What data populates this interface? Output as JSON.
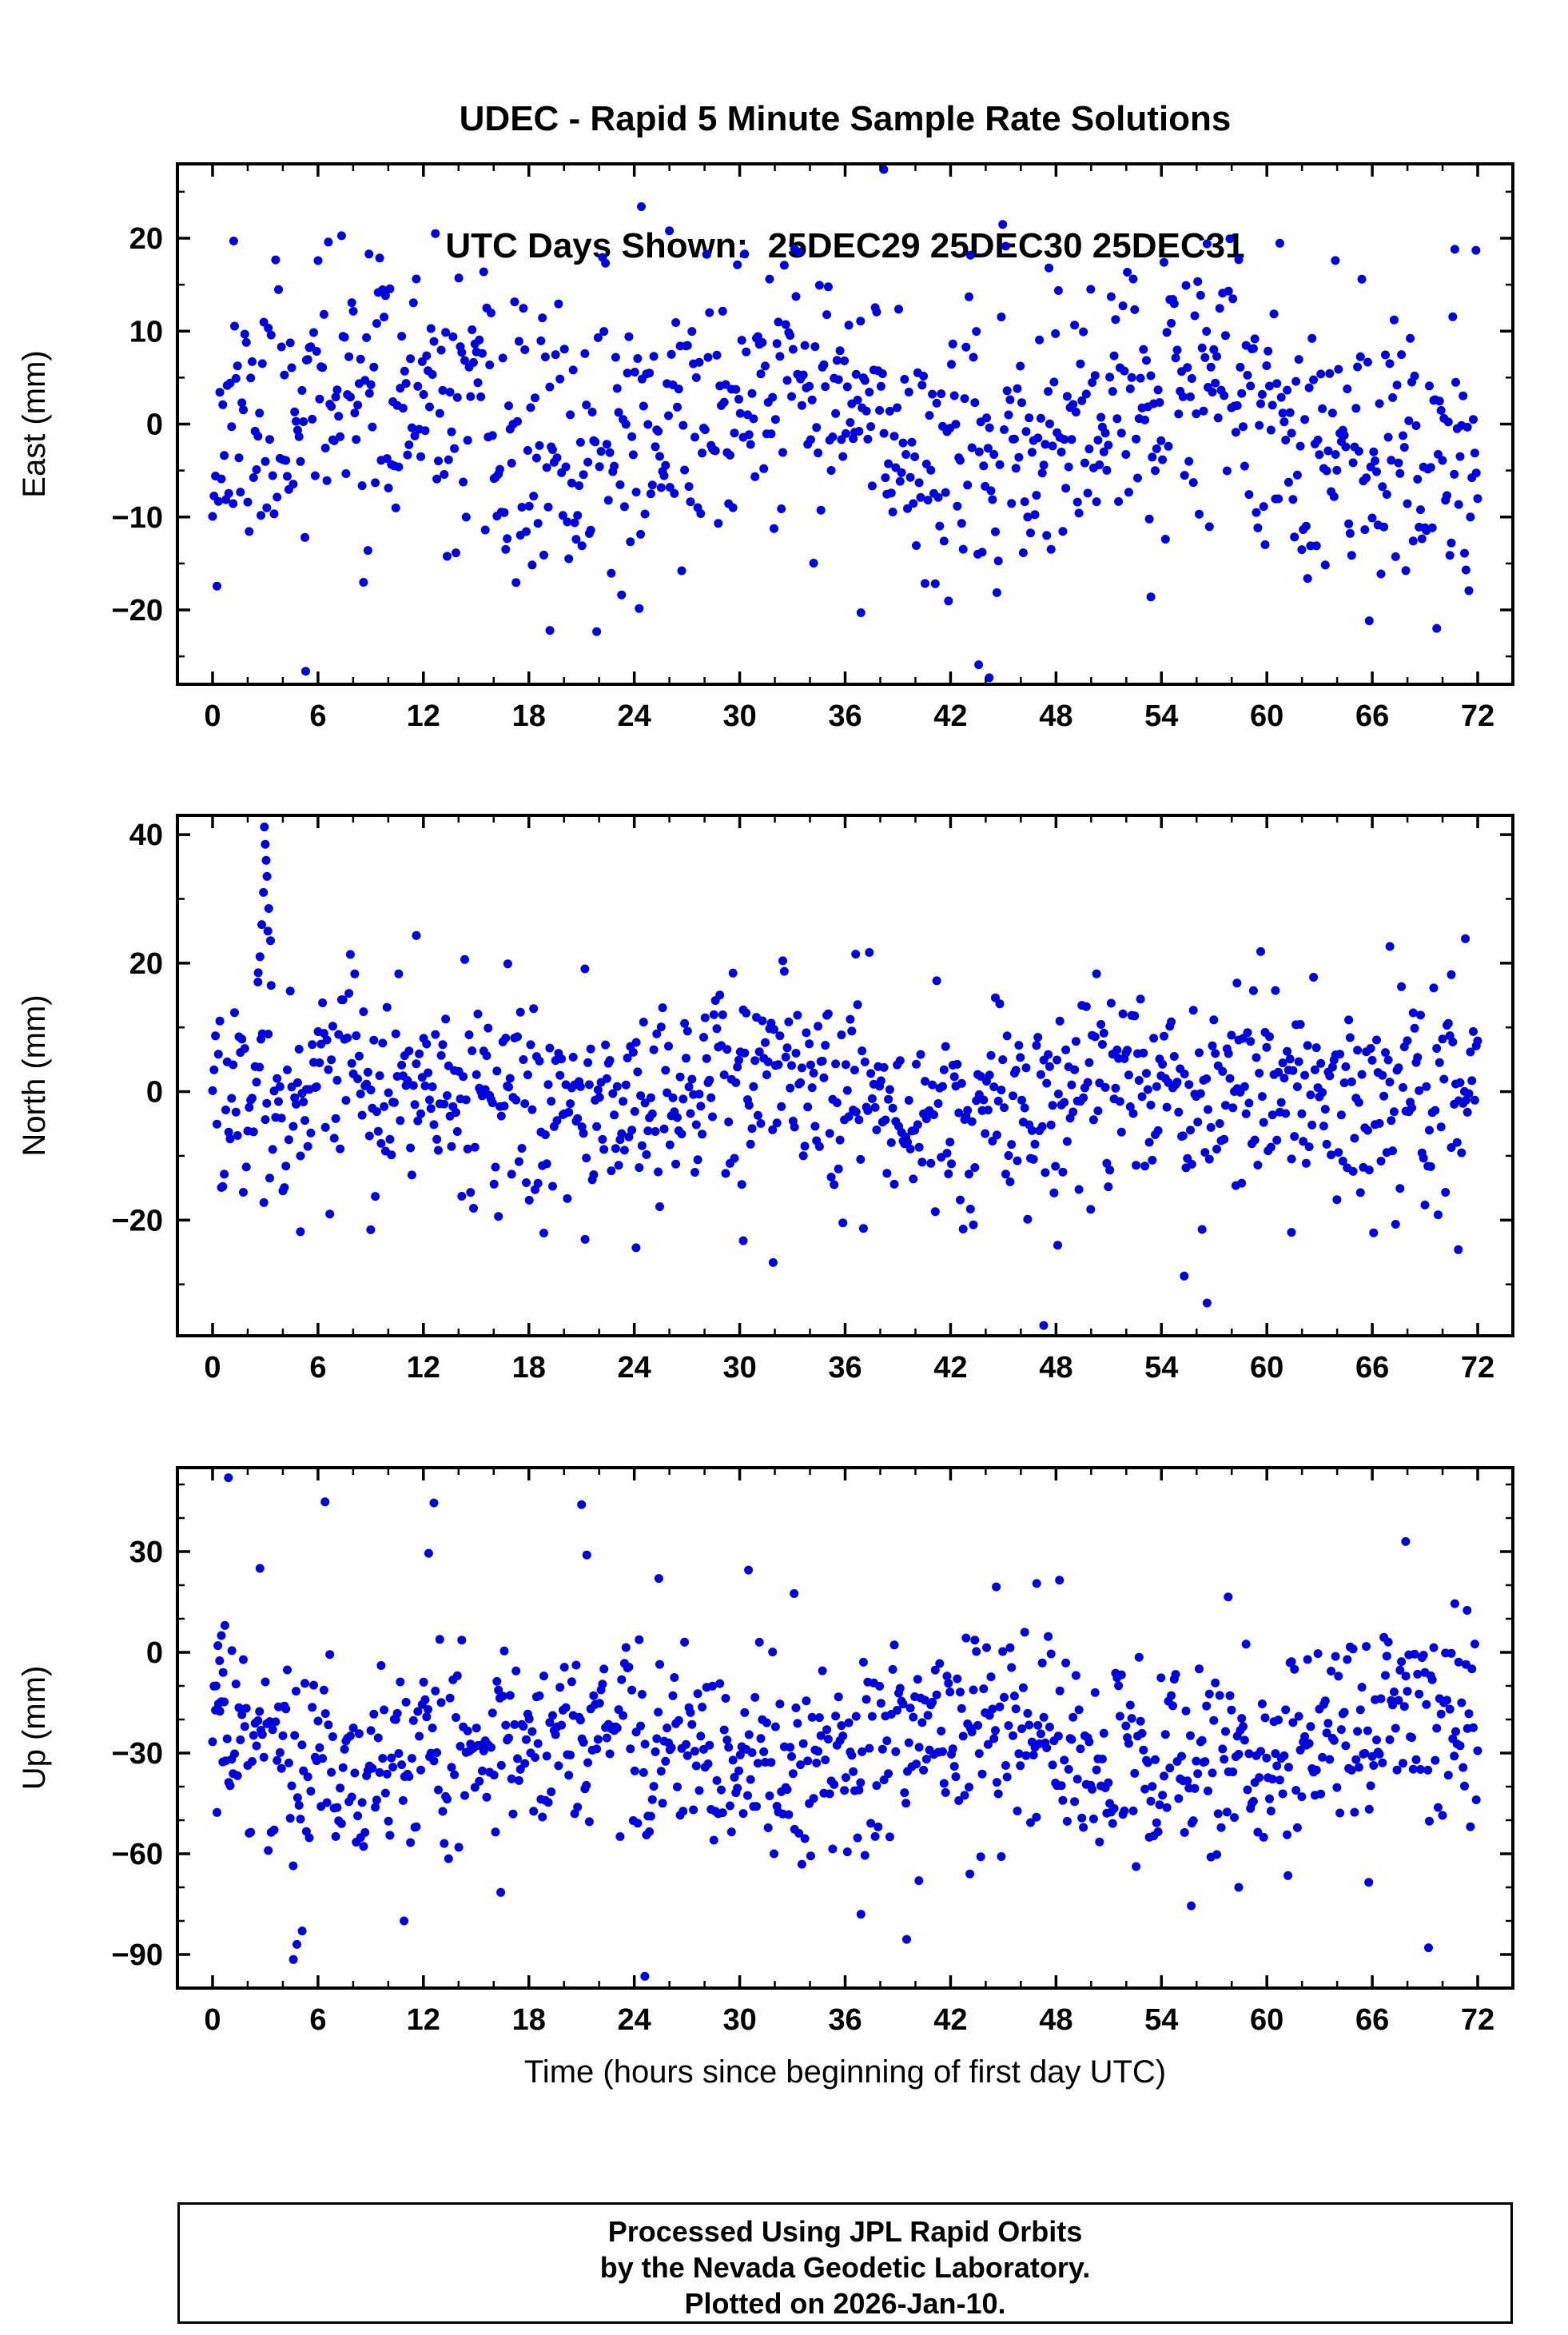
{
  "header": {
    "title_line1": "UDEC - Rapid 5 Minute Sample Rate Solutions",
    "title_line2": "UTC Days Shown:  25DEC29 25DEC30 25DEC31"
  },
  "axis": {
    "x_title": "Time (hours since beginning of first day UTC)"
  },
  "footer": {
    "line1": "Processed Using JPL Rapid Orbits",
    "line2": "by the Nevada Geodetic Laboratory.",
    "line3": "Plotted on 2026-Jan-10."
  },
  "styles": {
    "point_color": "#0000dd",
    "frame_color": "#000000",
    "text_color": "#000000",
    "background": "#ffffff"
  },
  "chart_data": [
    {
      "type": "scatter",
      "name": "east",
      "ylabel": "East (mm)",
      "xlim": [
        -2,
        74
      ],
      "ylim": [
        -28,
        28
      ],
      "xticks": [
        0,
        6,
        12,
        18,
        24,
        30,
        36,
        42,
        48,
        54,
        60,
        66,
        72
      ],
      "x_minor_step": 2,
      "yticks": [
        -20,
        -10,
        0,
        10,
        20
      ],
      "y_minor_step": 5,
      "sampling": {
        "n_points": 864,
        "x_start": 0,
        "x_end": 72,
        "seed": 11
      },
      "distribution": {
        "mean": 0,
        "wave_amplitude": 3.5,
        "wave_period": 24,
        "wave_phase": 2,
        "noise_std": 7.2,
        "clip": [
          -24.5,
          24.5
        ]
      },
      "outliers": [
        [
          1.2,
          19.7
        ],
        [
          5.3,
          -26.6
        ],
        [
          8.9,
          18.3
        ],
        [
          19.2,
          -22.2
        ],
        [
          24.4,
          23.4
        ],
        [
          26.0,
          20.8
        ],
        [
          36.9,
          -20.3
        ],
        [
          38.2,
          27.4
        ],
        [
          43.6,
          -25.9
        ],
        [
          44.2,
          -27.3
        ],
        [
          47.6,
          16.8
        ],
        [
          53.4,
          -18.6
        ],
        [
          56.6,
          19.4
        ],
        [
          63.9,
          17.6
        ],
        [
          70.7,
          18.8
        ],
        [
          71.9,
          18.7
        ]
      ]
    },
    {
      "type": "scatter",
      "name": "north",
      "ylabel": "North (mm)",
      "xlim": [
        -2,
        74
      ],
      "ylim": [
        -38,
        43
      ],
      "xticks": [
        0,
        6,
        12,
        18,
        24,
        30,
        36,
        42,
        48,
        54,
        60,
        66,
        72
      ],
      "x_minor_step": 2,
      "yticks": [
        -20,
        0,
        20,
        40
      ],
      "y_minor_step": 10,
      "sampling": {
        "n_points": 864,
        "x_start": 0,
        "x_end": 72,
        "seed": 22
      },
      "distribution": {
        "mean": -0.5,
        "wave_amplitude": 2.5,
        "wave_period": 24,
        "wave_phase": 0,
        "noise_std": 8,
        "clip": [
          -24,
          22
        ]
      },
      "outliers": [
        [
          2.6,
          18.5
        ],
        [
          2.7,
          21.0
        ],
        [
          2.8,
          26.0
        ],
        [
          2.9,
          31.0
        ],
        [
          2.95,
          41.2
        ],
        [
          3.0,
          38.5
        ],
        [
          3.05,
          36.0
        ],
        [
          3.1,
          33.5
        ],
        [
          3.15,
          25.0
        ],
        [
          3.2,
          28.5
        ],
        [
          3.3,
          23.5
        ],
        [
          5.0,
          -21.8
        ],
        [
          9.0,
          -21.5
        ],
        [
          11.6,
          24.3
        ],
        [
          16.8,
          19.9
        ],
        [
          21.2,
          -23.0
        ],
        [
          24.1,
          -24.3
        ],
        [
          30.2,
          -23.2
        ],
        [
          31.9,
          -26.6
        ],
        [
          36.6,
          21.4
        ],
        [
          47.3,
          -36.4
        ],
        [
          48.1,
          -23.9
        ],
        [
          55.3,
          -28.7
        ],
        [
          56.6,
          -32.9
        ],
        [
          58.3,
          16.9
        ],
        [
          61.4,
          -21.9
        ],
        [
          67.0,
          22.6
        ],
        [
          70.5,
          18.2
        ],
        [
          70.9,
          -24.6
        ],
        [
          71.3,
          23.8
        ]
      ]
    },
    {
      "type": "scatter",
      "name": "up",
      "ylabel": "Up (mm)",
      "xlabel": "Time (hours since beginning of first day UTC)",
      "xlim": [
        -2,
        74
      ],
      "ylim": [
        -100,
        55
      ],
      "xticks": [
        0,
        6,
        12,
        18,
        24,
        30,
        36,
        42,
        48,
        54,
        60,
        66,
        72
      ],
      "x_minor_step": 2,
      "yticks": [
        -90,
        -60,
        -30,
        0,
        30
      ],
      "y_minor_step": 10,
      "sampling": {
        "n_points": 864,
        "x_start": 0,
        "x_end": 72,
        "seed": 33
      },
      "distribution": {
        "mean": -29,
        "wave_amplitude": 7,
        "wave_period": 24,
        "wave_phase": 14,
        "noise_std": 16,
        "clip": [
          -64,
          6
        ]
      },
      "outliers": [
        [
          0.2,
          -10.0
        ],
        [
          0.3,
          2.0
        ],
        [
          0.4,
          -2.5
        ],
        [
          0.5,
          5.0
        ],
        [
          0.6,
          -6.0
        ],
        [
          0.7,
          8.0
        ],
        [
          0.9,
          52.0
        ],
        [
          1.1,
          0.5
        ],
        [
          2.7,
          25.0
        ],
        [
          4.6,
          -91.5
        ],
        [
          4.8,
          -87.0
        ],
        [
          5.1,
          -83.0
        ],
        [
          6.4,
          44.8
        ],
        [
          10.9,
          -80.0
        ],
        [
          12.3,
          29.5
        ],
        [
          12.6,
          44.5
        ],
        [
          16.4,
          -71.5
        ],
        [
          21.0,
          44.0
        ],
        [
          21.3,
          29.0
        ],
        [
          24.6,
          -96.5
        ],
        [
          25.4,
          22.0
        ],
        [
          30.5,
          24.5
        ],
        [
          33.1,
          17.5
        ],
        [
          36.9,
          -78.0
        ],
        [
          39.5,
          -85.5
        ],
        [
          40.2,
          -68.0
        ],
        [
          43.1,
          -66.0
        ],
        [
          44.6,
          19.5
        ],
        [
          46.9,
          20.5
        ],
        [
          48.2,
          21.5
        ],
        [
          55.7,
          -75.5
        ],
        [
          57.8,
          16.5
        ],
        [
          58.4,
          -70.0
        ],
        [
          61.2,
          -66.5
        ],
        [
          65.8,
          -68.5
        ],
        [
          67.9,
          33.0
        ],
        [
          69.2,
          -88.0
        ],
        [
          70.7,
          14.5
        ],
        [
          71.4,
          12.5
        ]
      ]
    }
  ]
}
